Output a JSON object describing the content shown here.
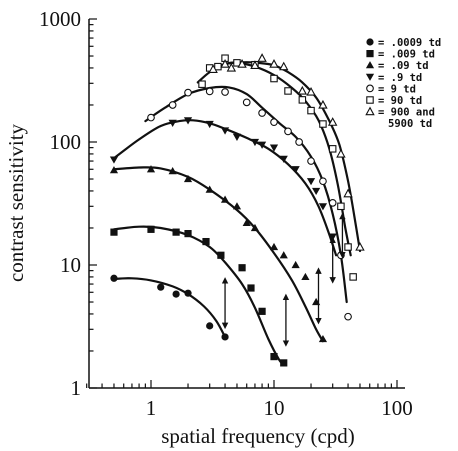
{
  "chart_data": {
    "type": "scatter",
    "title": "",
    "xlabel": "spatial frequency (cpd)",
    "ylabel": "contrast sensitivity",
    "xscale": "log",
    "yscale": "log",
    "xlim": [
      0.3,
      100
    ],
    "ylim": [
      1,
      1000
    ],
    "x_ticks": [
      "1",
      "10",
      "100"
    ],
    "y_ticks": [
      "1",
      "10",
      "100",
      "1000"
    ],
    "legend_position": "top-right",
    "series": [
      {
        "legend": "= .0009 td",
        "marker": "filled-circle",
        "points": [
          [
            0.5,
            7.8
          ],
          [
            1.2,
            6.6
          ],
          [
            1.6,
            5.8
          ],
          [
            2,
            5.9
          ],
          [
            3,
            3.2
          ],
          [
            4,
            2.6
          ]
        ],
        "curve": [
          [
            0.5,
            7.7
          ],
          [
            0.7,
            7.8
          ],
          [
            1,
            7.5
          ],
          [
            1.5,
            6.7
          ],
          [
            2,
            5.8
          ],
          [
            2.7,
            4.6
          ],
          [
            3.4,
            3.5
          ],
          [
            4,
            2.6
          ]
        ]
      },
      {
        "legend": "= .009 td",
        "marker": "filled-square",
        "points": [
          [
            0.5,
            18.5
          ],
          [
            1,
            19.5
          ],
          [
            1.6,
            18.5
          ],
          [
            2,
            18
          ],
          [
            2.8,
            15.5
          ],
          [
            3.7,
            12
          ],
          [
            5.5,
            9.5
          ],
          [
            6.5,
            6.5
          ],
          [
            8,
            4.2
          ],
          [
            10,
            1.8
          ],
          [
            12,
            1.6
          ]
        ],
        "curve": [
          [
            0.5,
            19.5
          ],
          [
            0.8,
            20.5
          ],
          [
            1.2,
            20
          ],
          [
            2,
            17.5
          ],
          [
            3,
            14
          ],
          [
            4,
            10.5
          ],
          [
            5.5,
            7
          ],
          [
            7,
            4.5
          ],
          [
            9,
            2.5
          ],
          [
            11,
            1.7
          ],
          [
            12,
            1.55
          ]
        ]
      },
      {
        "legend": "= .09 td",
        "marker": "filled-triangle",
        "points": [
          [
            0.5,
            59
          ],
          [
            1,
            60
          ],
          [
            1.5,
            58
          ],
          [
            2,
            50
          ],
          [
            3,
            41
          ],
          [
            4,
            34
          ],
          [
            5,
            30
          ],
          [
            6,
            22
          ],
          [
            7,
            20
          ],
          [
            10,
            14
          ],
          [
            12,
            12
          ],
          [
            15,
            10
          ],
          [
            18,
            8
          ],
          [
            22,
            5
          ],
          [
            25,
            2.5
          ]
        ],
        "curve": [
          [
            0.5,
            60
          ],
          [
            0.8,
            62
          ],
          [
            1.2,
            61
          ],
          [
            2,
            52
          ],
          [
            3,
            41
          ],
          [
            5,
            28
          ],
          [
            7,
            20
          ],
          [
            10,
            12.5
          ],
          [
            14,
            7.5
          ],
          [
            18,
            4.6
          ],
          [
            22,
            3
          ],
          [
            25,
            2.4
          ]
        ]
      },
      {
        "legend": "= .9 td",
        "marker": "filled-inverted-triangle",
        "points": [
          [
            0.5,
            72
          ],
          [
            1.5,
            143
          ],
          [
            2,
            150
          ],
          [
            3,
            140
          ],
          [
            4,
            124
          ],
          [
            5,
            110
          ],
          [
            7,
            100
          ],
          [
            8,
            95
          ],
          [
            10,
            90
          ],
          [
            12,
            73
          ],
          [
            15,
            60
          ],
          [
            20,
            48
          ],
          [
            22,
            40
          ],
          [
            25,
            30
          ],
          [
            30,
            17
          ]
        ],
        "curve": [
          [
            0.5,
            74
          ],
          [
            0.8,
            105
          ],
          [
            1.2,
            135
          ],
          [
            1.7,
            148
          ],
          [
            2.2,
            150
          ],
          [
            3,
            142
          ],
          [
            4,
            128
          ],
          [
            6,
            108
          ],
          [
            9,
            88
          ],
          [
            13,
            66
          ],
          [
            18,
            46
          ],
          [
            23,
            30
          ],
          [
            28,
            18
          ],
          [
            32,
            12
          ]
        ]
      },
      {
        "legend": "= 9 td",
        "marker": "open-circle",
        "points": [
          [
            1,
            158
          ],
          [
            1.5,
            200
          ],
          [
            2,
            252
          ],
          [
            3,
            258
          ],
          [
            4,
            255
          ],
          [
            6,
            210
          ],
          [
            8,
            172
          ],
          [
            10,
            145
          ],
          [
            13,
            122
          ],
          [
            16,
            100
          ],
          [
            20,
            70
          ],
          [
            25,
            48
          ],
          [
            30,
            32
          ],
          [
            35,
            12
          ],
          [
            40,
            3.8
          ]
        ],
        "curve": [
          [
            0.9,
            148
          ],
          [
            1.3,
            190
          ],
          [
            2,
            245
          ],
          [
            3,
            275
          ],
          [
            4.3,
            278
          ],
          [
            6,
            245
          ],
          [
            8,
            190
          ],
          [
            11,
            143
          ],
          [
            15,
            110
          ],
          [
            20,
            76
          ],
          [
            25,
            48
          ],
          [
            30,
            26
          ],
          [
            35,
            12
          ],
          [
            39,
            5
          ]
        ]
      },
      {
        "legend": "= 90 td",
        "marker": "open-square",
        "points": [
          [
            2.6,
            295
          ],
          [
            3,
            400
          ],
          [
            3.5,
            410
          ],
          [
            4,
            480
          ],
          [
            5,
            440
          ],
          [
            7,
            425
          ],
          [
            10,
            328
          ],
          [
            13,
            260
          ],
          [
            17,
            220
          ],
          [
            20,
            180
          ],
          [
            25,
            140
          ],
          [
            30,
            88
          ],
          [
            35,
            30
          ],
          [
            40,
            14
          ],
          [
            44,
            8
          ]
        ],
        "curve": [
          [
            2.4,
            305
          ],
          [
            3,
            370
          ],
          [
            4,
            430
          ],
          [
            5,
            440
          ],
          [
            7,
            410
          ],
          [
            10,
            350
          ],
          [
            14,
            275
          ],
          [
            18,
            215
          ],
          [
            23,
            150
          ],
          [
            28,
            90
          ],
          [
            33,
            45
          ],
          [
            38,
            20
          ],
          [
            42,
            12
          ]
        ]
      },
      {
        "legend": "= 900 and 5900 td",
        "marker": "open-triangle",
        "points": [
          [
            3.2,
            390
          ],
          [
            4,
            430
          ],
          [
            4.5,
            400
          ],
          [
            5.5,
            430
          ],
          [
            7,
            420
          ],
          [
            8,
            480
          ],
          [
            10,
            430
          ],
          [
            12,
            410
          ],
          [
            17,
            260
          ],
          [
            20,
            255
          ],
          [
            25,
            200
          ],
          [
            30,
            145
          ],
          [
            35,
            80
          ],
          [
            40,
            38
          ],
          [
            50,
            14
          ]
        ],
        "curve": [
          [
            3,
            375
          ],
          [
            4,
            430
          ],
          [
            5.5,
            445
          ],
          [
            7.5,
            440
          ],
          [
            10,
            420
          ],
          [
            13,
            370
          ],
          [
            17,
            305
          ],
          [
            22,
            230
          ],
          [
            28,
            150
          ],
          [
            34,
            95
          ],
          [
            40,
            48
          ],
          [
            45,
            25
          ],
          [
            50,
            13
          ]
        ]
      }
    ],
    "annotations": [
      {
        "type": "double-arrow",
        "x": 4,
        "y_from": 3.2,
        "y_to": 7.5
      },
      {
        "type": "double-arrow",
        "x": 12.5,
        "y_from": 2.3,
        "y_to": 5.5
      },
      {
        "type": "double-arrow",
        "x": 23,
        "y_from": 3.5,
        "y_to": 9
      },
      {
        "type": "double-arrow",
        "x": 30,
        "y_from": 7.5,
        "y_to": 16
      },
      {
        "type": "double-arrow",
        "x": 36,
        "y_from": 12,
        "y_to": 25
      }
    ]
  }
}
